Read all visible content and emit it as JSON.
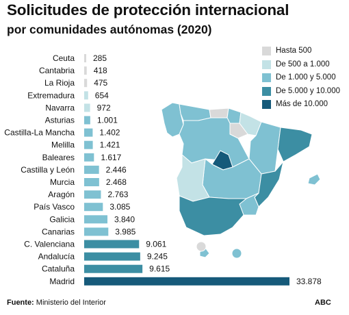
{
  "title": "Solicitudes de protección internacional",
  "subtitle": "por comunidades autónomas (2020)",
  "legend": [
    {
      "label": "Hasta 500",
      "color": "#d9d9d9"
    },
    {
      "label": "De 500 a 1.000",
      "color": "#c3e2e6"
    },
    {
      "label": "De 1.000 y 5.000",
      "color": "#7fc1d2"
    },
    {
      "label": "De 5.000 y 10.000",
      "color": "#3c8ea3"
    },
    {
      "label": "Más de 10.000",
      "color": "#165a7a"
    }
  ],
  "footer": {
    "source_label": "Fuente:",
    "source_text": "Ministerio del Interior",
    "brand": "ABC"
  },
  "chart_data": {
    "type": "bar",
    "orientation": "horizontal",
    "title": "Solicitudes de protección internacional",
    "subtitle": "por comunidades autónomas (2020)",
    "categories": [
      "Ceuta",
      "Cantabria",
      "La Rioja",
      "Extremadura",
      "Navarra",
      "Asturias",
      "Castilla-La Mancha",
      "Melilla",
      "Baleares",
      "Castilla y León",
      "Murcia",
      "Aragón",
      "País Vasco",
      "Galicia",
      "Canarias",
      "C. Valenciana",
      "Andalucía",
      "Cataluña",
      "Madrid"
    ],
    "values": [
      285,
      418,
      475,
      654,
      972,
      1001,
      1402,
      1421,
      1617,
      2446,
      2468,
      2763,
      3085,
      3840,
      3985,
      9061,
      9245,
      9615,
      33878
    ],
    "value_labels": [
      "285",
      "418",
      "475",
      "654",
      "972",
      "1.001",
      "1.402",
      "1.421",
      "1.617",
      "2.446",
      "2.468",
      "2.763",
      "3.085",
      "3.840",
      "3.985",
      "9.061",
      "9.245",
      "9.615",
      "33.878"
    ],
    "bar_colors": [
      "#d9d9d9",
      "#d9d9d9",
      "#d9d9d9",
      "#c3e2e6",
      "#c3e2e6",
      "#7fc1d2",
      "#7fc1d2",
      "#7fc1d2",
      "#7fc1d2",
      "#7fc1d2",
      "#7fc1d2",
      "#7fc1d2",
      "#7fc1d2",
      "#7fc1d2",
      "#7fc1d2",
      "#3c8ea3",
      "#3c8ea3",
      "#3c8ea3",
      "#165a7a"
    ],
    "xlim": [
      0,
      33878
    ],
    "grid": false,
    "legend_position": "top-right"
  },
  "map": {
    "regions": [
      {
        "name": "galicia",
        "color": "#7fc1d2"
      },
      {
        "name": "asturias",
        "color": "#7fc1d2"
      },
      {
        "name": "cantabria",
        "color": "#d9d9d9"
      },
      {
        "name": "pais-vasco",
        "color": "#7fc1d2"
      },
      {
        "name": "navarra",
        "color": "#c3e2e6"
      },
      {
        "name": "la-rioja",
        "color": "#d9d9d9"
      },
      {
        "name": "aragon",
        "color": "#7fc1d2"
      },
      {
        "name": "cataluna",
        "color": "#3c8ea3"
      },
      {
        "name": "castilla-y-leon",
        "color": "#7fc1d2"
      },
      {
        "name": "madrid",
        "color": "#165a7a"
      },
      {
        "name": "castilla-la-mancha",
        "color": "#7fc1d2"
      },
      {
        "name": "extremadura",
        "color": "#c3e2e6"
      },
      {
        "name": "c-valenciana",
        "color": "#3c8ea3"
      },
      {
        "name": "murcia",
        "color": "#7fc1d2"
      },
      {
        "name": "andalucia",
        "color": "#3c8ea3"
      },
      {
        "name": "baleares",
        "color": "#7fc1d2"
      },
      {
        "name": "canarias",
        "color": "#7fc1d2"
      },
      {
        "name": "ceuta",
        "color": "#d9d9d9"
      },
      {
        "name": "melilla",
        "color": "#7fc1d2"
      }
    ]
  }
}
